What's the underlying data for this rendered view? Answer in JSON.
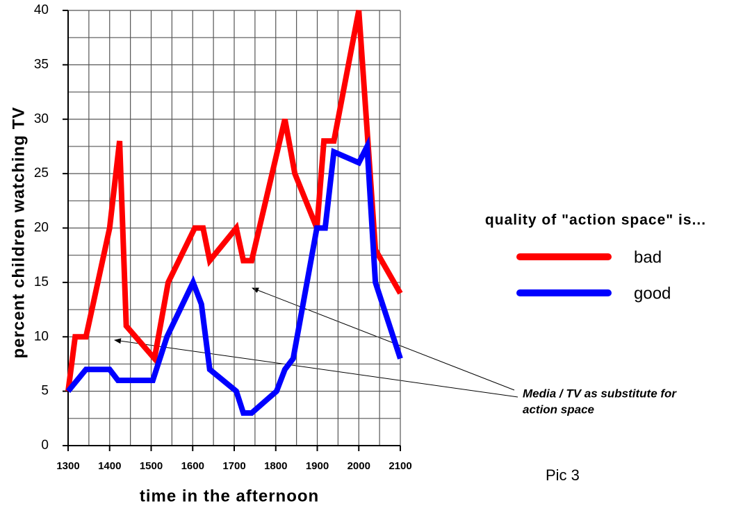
{
  "chart_data": {
    "type": "line",
    "x_label": "time in the afternoon",
    "y_label": "percent children watching TV",
    "xlim": [
      1300,
      2100
    ],
    "ylim": [
      0,
      40
    ],
    "xticks": [
      1300,
      1400,
      1500,
      1600,
      1700,
      1800,
      1900,
      2000,
      2100
    ],
    "yticks": [
      0,
      5,
      10,
      15,
      20,
      25,
      30,
      35,
      40
    ],
    "xgrid": [
      1300,
      1350,
      1400,
      1450,
      1500,
      1550,
      1600,
      1650,
      1700,
      1750,
      1800,
      1850,
      1900,
      1950,
      2000,
      2050,
      2100
    ],
    "ygrid": [
      0,
      2.5,
      5,
      7.5,
      10,
      12.5,
      15,
      17.5,
      20,
      22.5,
      25,
      27.5,
      30,
      32.5,
      35,
      37.5,
      40
    ],
    "grid": true,
    "legend_title": "quality of \"action space\" is...",
    "series": [
      {
        "name": "bad",
        "color": "#ff0000",
        "x": [
          1300,
          1317,
          1343,
          1400,
          1424,
          1440,
          1508,
          1541,
          1605,
          1625,
          1641,
          1705,
          1722,
          1742,
          1822,
          1846,
          1899,
          1916,
          1940,
          2000,
          2040,
          2100
        ],
        "values": [
          5,
          10,
          10,
          20,
          28,
          11,
          8,
          15,
          20,
          20,
          17,
          20,
          17,
          17,
          30,
          25,
          20,
          28,
          28,
          40,
          18,
          14
        ]
      },
      {
        "name": "good",
        "color": "#0000ff",
        "x": [
          1300,
          1343,
          1400,
          1420,
          1504,
          1538,
          1601,
          1621,
          1641,
          1705,
          1722,
          1742,
          1802,
          1822,
          1842,
          1899,
          1919,
          1940,
          2000,
          2020,
          2040,
          2100
        ],
        "values": [
          5,
          7,
          7,
          6,
          6,
          10,
          15,
          13,
          7,
          5,
          3,
          3,
          5,
          7,
          8,
          20,
          20,
          27,
          26,
          27.5,
          15,
          8
        ]
      }
    ],
    "annotation": [
      "Media / TV as substitute for",
      "action space"
    ],
    "caption": "Pic 3"
  }
}
